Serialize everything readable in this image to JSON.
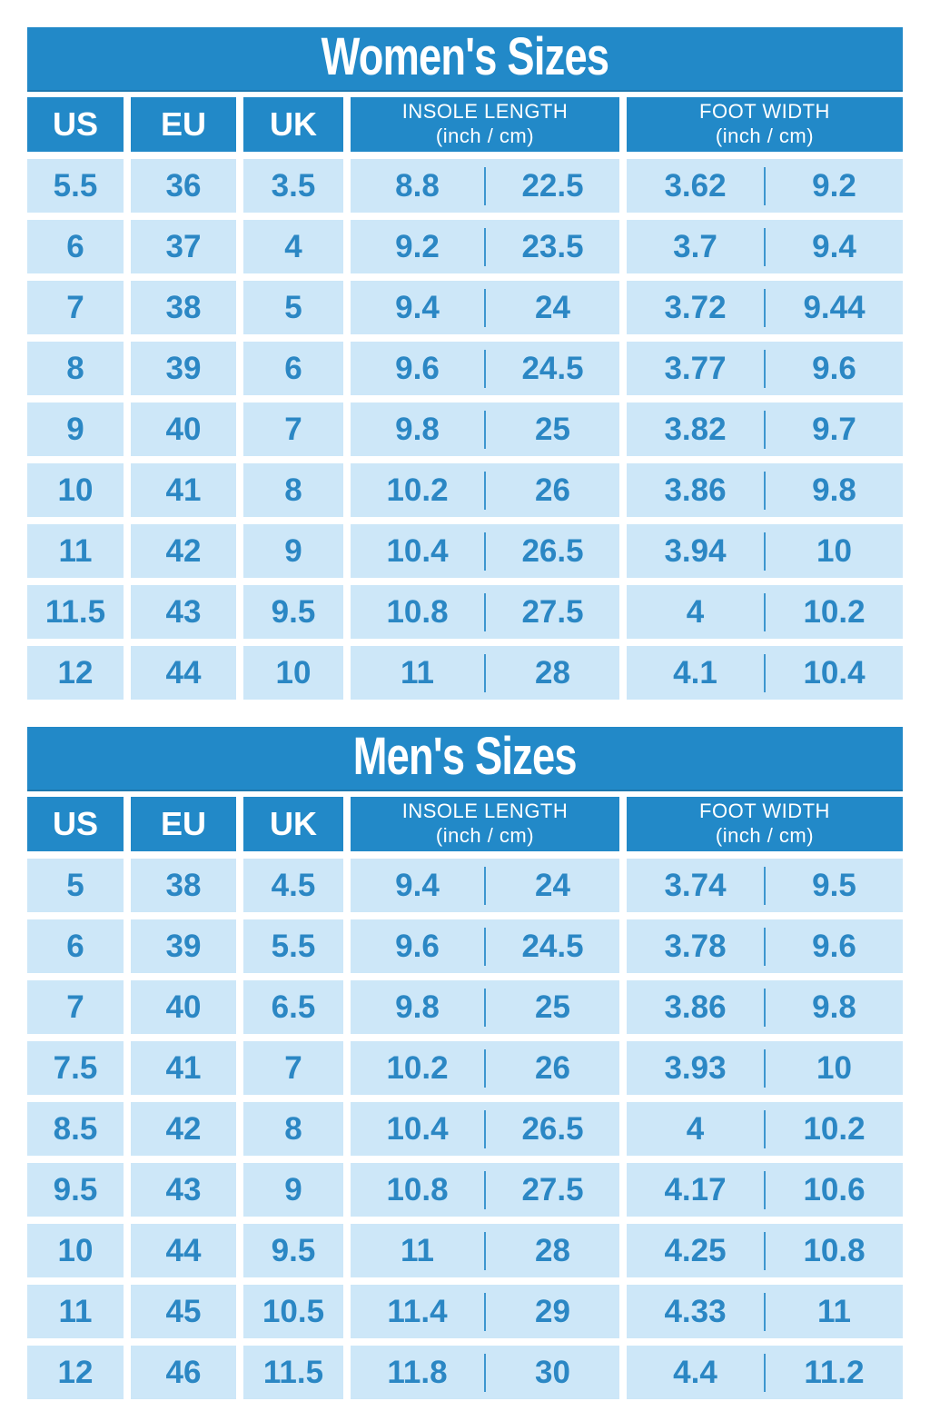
{
  "colors": {
    "accent_blue": "#2289c8",
    "light_cell_blue": "#cde7f8",
    "data_text_blue": "#2b87c4",
    "divider_blue": "#3d96cf",
    "title_text": "#ffffff",
    "page_background": "#ffffff"
  },
  "header_labels": {
    "us": "US",
    "eu": "EU",
    "uk": "UK",
    "insole_title": "INSOLE LENGTH",
    "insole_unit": "(inch / cm)",
    "width_title": "FOOT WIDTH",
    "width_unit": "(inch / cm)"
  },
  "chart_data": [
    {
      "type": "table",
      "title": "Women's Sizes",
      "columns": [
        "US",
        "EU",
        "UK",
        "Insole length (inch)",
        "Insole length (cm)",
        "Foot width (inch)",
        "Foot width (cm)"
      ],
      "rows": [
        [
          "5.5",
          "36",
          "3.5",
          "8.8",
          "22.5",
          "3.62",
          "9.2"
        ],
        [
          "6",
          "37",
          "4",
          "9.2",
          "23.5",
          "3.7",
          "9.4"
        ],
        [
          "7",
          "38",
          "5",
          "9.4",
          "24",
          "3.72",
          "9.44"
        ],
        [
          "8",
          "39",
          "6",
          "9.6",
          "24.5",
          "3.77",
          "9.6"
        ],
        [
          "9",
          "40",
          "7",
          "9.8",
          "25",
          "3.82",
          "9.7"
        ],
        [
          "10",
          "41",
          "8",
          "10.2",
          "26",
          "3.86",
          "9.8"
        ],
        [
          "11",
          "42",
          "9",
          "10.4",
          "26.5",
          "3.94",
          "10"
        ],
        [
          "11.5",
          "43",
          "9.5",
          "10.8",
          "27.5",
          "4",
          "10.2"
        ],
        [
          "12",
          "44",
          "10",
          "11",
          "28",
          "4.1",
          "10.4"
        ]
      ]
    },
    {
      "type": "table",
      "title": "Men's Sizes",
      "columns": [
        "US",
        "EU",
        "UK",
        "Insole length (inch)",
        "Insole length (cm)",
        "Foot width (inch)",
        "Foot width (cm)"
      ],
      "rows": [
        [
          "5",
          "38",
          "4.5",
          "9.4",
          "24",
          "3.74",
          "9.5"
        ],
        [
          "6",
          "39",
          "5.5",
          "9.6",
          "24.5",
          "3.78",
          "9.6"
        ],
        [
          "7",
          "40",
          "6.5",
          "9.8",
          "25",
          "3.86",
          "9.8"
        ],
        [
          "7.5",
          "41",
          "7",
          "10.2",
          "26",
          "3.93",
          "10"
        ],
        [
          "8.5",
          "42",
          "8",
          "10.4",
          "26.5",
          "4",
          "10.2"
        ],
        [
          "9.5",
          "43",
          "9",
          "10.8",
          "27.5",
          "4.17",
          "10.6"
        ],
        [
          "10",
          "44",
          "9.5",
          "11",
          "28",
          "4.25",
          "10.8"
        ],
        [
          "11",
          "45",
          "10.5",
          "11.4",
          "29",
          "4.33",
          "11"
        ],
        [
          "12",
          "46",
          "11.5",
          "11.8",
          "30",
          "4.4",
          "11.2"
        ]
      ]
    }
  ]
}
